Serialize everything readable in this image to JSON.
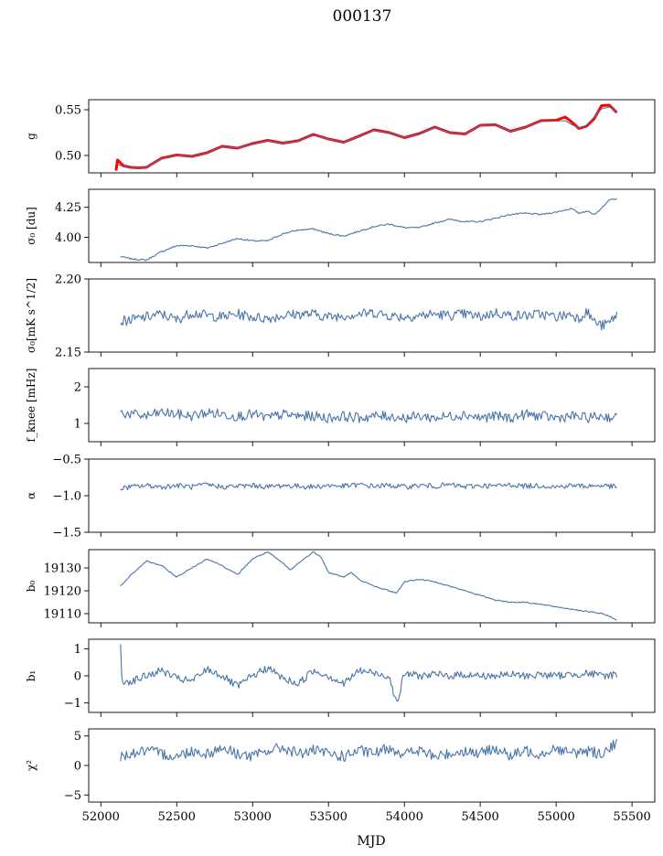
{
  "figure": {
    "title": "000137",
    "xlabel": "MJD"
  },
  "colors": {
    "series": "#4a75a8",
    "fit": "#ff0000",
    "axes": "#000000"
  },
  "chart_data": {
    "type": "line",
    "title": "000137",
    "xlabel": "MJD",
    "xlim": [
      51920,
      55650
    ],
    "xticks": [
      52000,
      52500,
      53000,
      53500,
      54000,
      54500,
      55000,
      55500
    ],
    "grid": false,
    "panels": [
      {
        "key": "g",
        "ylabel": "g",
        "ylim": [
          0.481,
          0.561
        ],
        "yticks": [
          0.5,
          0.55
        ],
        "yticklabels": [
          "0.50",
          "0.55"
        ],
        "series": [
          {
            "style": "fit",
            "x": [
              52100,
              52110,
              52150,
              52200,
              52250,
              52300,
              52400,
              52500,
              52600,
              52700,
              52800,
              52900,
              53000,
              53100,
              53200,
              53300,
              53400,
              53500,
              53600,
              53700,
              53800,
              53900,
              54000,
              54100,
              54200,
              54300,
              54400,
              54500,
              54600,
              54700,
              54800,
              54900,
              55000,
              55060,
              55100,
              55150,
              55200,
              55250,
              55300,
              55350,
              55400
            ],
            "y": [
              0.4835,
              0.495,
              0.4885,
              0.487,
              0.4865,
              0.487,
              0.497,
              0.5005,
              0.499,
              0.503,
              0.51,
              0.508,
              0.513,
              0.5165,
              0.5135,
              0.516,
              0.523,
              0.518,
              0.5145,
              0.521,
              0.528,
              0.525,
              0.5195,
              0.524,
              0.531,
              0.525,
              0.5235,
              0.533,
              0.5335,
              0.5265,
              0.531,
              0.538,
              0.5385,
              0.542,
              0.537,
              0.5295,
              0.532,
              0.54,
              0.5545,
              0.555,
              0.547
            ]
          },
          {
            "style": "model",
            "x": [
              52110,
              52150,
              52200,
              52250,
              52300,
              52400,
              52500,
              52600,
              52700,
              52800,
              52900,
              53000,
              53100,
              53200,
              53300,
              53400,
              53500,
              53600,
              53700,
              53800,
              53900,
              54000,
              54100,
              54200,
              54300,
              54400,
              54500,
              54600,
              54700,
              54800,
              54900,
              55000,
              55060,
              55100,
              55150,
              55200,
              55250,
              55300,
              55350,
              55400
            ],
            "y": [
              0.49,
              0.488,
              0.487,
              0.4865,
              0.487,
              0.4965,
              0.5,
              0.499,
              0.503,
              0.5095,
              0.508,
              0.5125,
              0.516,
              0.5135,
              0.5155,
              0.5225,
              0.518,
              0.5145,
              0.5205,
              0.5275,
              0.525,
              0.5195,
              0.5235,
              0.5305,
              0.525,
              0.5235,
              0.5325,
              0.533,
              0.5265,
              0.5305,
              0.5375,
              0.5375,
              0.538,
              0.534,
              0.53,
              0.533,
              0.542,
              0.551,
              0.553,
              0.548
            ]
          }
        ]
      },
      {
        "key": "sigma0_du",
        "ylabel": "σ₀ [du]",
        "ylim": [
          3.79,
          4.4
        ],
        "yticks": [
          4.0,
          4.25
        ],
        "yticklabels": [
          "4.00",
          "4.25"
        ],
        "series": [
          {
            "style": "line",
            "x": [
              52130,
              52200,
              52300,
              52400,
              52500,
              52600,
              52700,
              52800,
              52900,
              53000,
              53100,
              53200,
              53300,
              53400,
              53500,
              53600,
              53700,
              53800,
              53900,
              54000,
              54100,
              54200,
              54300,
              54400,
              54500,
              54600,
              54700,
              54800,
              54900,
              55000,
              55100,
              55150,
              55200,
              55250,
              55300,
              55350,
              55400
            ],
            "y": [
              3.84,
              3.82,
              3.81,
              3.88,
              3.93,
              3.93,
              3.91,
              3.95,
              3.99,
              3.97,
              3.97,
              4.03,
              4.06,
              4.07,
              4.03,
              4.01,
              4.05,
              4.09,
              4.11,
              4.08,
              4.08,
              4.12,
              4.15,
              4.13,
              4.13,
              4.16,
              4.19,
              4.2,
              4.19,
              4.21,
              4.24,
              4.2,
              4.22,
              4.19,
              4.24,
              4.32,
              4.32
            ]
          }
        ]
      },
      {
        "key": "sigma0_mk",
        "ylabel": "σ₀[mK s^1/2]",
        "ylim": [
          2.15,
          2.2
        ],
        "yticks": [
          2.15,
          2.2
        ],
        "yticklabels": [
          "2.15",
          "2.20"
        ],
        "series": [
          {
            "style": "line",
            "x": [
              52130,
              52200,
              52300,
              52400,
              52500,
              52600,
              52700,
              52800,
              52900,
              53000,
              53100,
              53200,
              53300,
              53400,
              53500,
              53600,
              53700,
              53800,
              53900,
              54000,
              54100,
              54200,
              54300,
              54400,
              54500,
              54600,
              54700,
              54800,
              54900,
              55000,
              55100,
              55150,
              55200,
              55250,
              55300,
              55350,
              55400
            ],
            "y": [
              2.171,
              2.172,
              2.174,
              2.176,
              2.172,
              2.177,
              2.175,
              2.174,
              2.176,
              2.174,
              2.173,
              2.175,
              2.176,
              2.176,
              2.174,
              2.175,
              2.176,
              2.177,
              2.175,
              2.174,
              2.175,
              2.176,
              2.175,
              2.176,
              2.174,
              2.177,
              2.175,
              2.175,
              2.176,
              2.174,
              2.176,
              2.173,
              2.178,
              2.171,
              2.168,
              2.17,
              2.176
            ]
          }
        ]
      },
      {
        "key": "fknee",
        "ylabel": "f_knee [mHz]",
        "ylim": [
          0.5,
          2.5
        ],
        "yticks": [
          1,
          2
        ],
        "yticklabels": [
          "1",
          "2"
        ],
        "series": [
          {
            "style": "line",
            "x": [
              52130,
              52200,
              52300,
              52400,
              52500,
              52600,
              52700,
              52800,
              52900,
              53000,
              53100,
              53200,
              53300,
              53400,
              53500,
              53600,
              53700,
              53800,
              53900,
              54000,
              54100,
              54200,
              54300,
              54400,
              54500,
              54600,
              54700,
              54800,
              54900,
              55000,
              55100,
              55200,
              55300,
              55400
            ],
            "y": [
              1.3,
              1.25,
              1.2,
              1.3,
              1.25,
              1.2,
              1.3,
              1.25,
              1.2,
              1.25,
              1.15,
              1.25,
              1.2,
              1.2,
              1.15,
              1.2,
              1.15,
              1.2,
              1.2,
              1.15,
              1.2,
              1.15,
              1.2,
              1.25,
              1.15,
              1.2,
              1.15,
              1.25,
              1.2,
              1.15,
              1.2,
              1.15,
              1.2,
              1.15
            ]
          }
        ]
      },
      {
        "key": "alpha",
        "ylabel": "α",
        "ylim": [
          -1.5,
          -0.5
        ],
        "yticks": [
          -1.5,
          -1.0,
          -0.5
        ],
        "yticklabels": [
          "−1.5",
          "−1.0",
          "−0.5"
        ],
        "series": [
          {
            "style": "line",
            "x": [
              52130,
              52200,
              52300,
              52400,
              52500,
              52600,
              52700,
              52800,
              52900,
              53000,
              53100,
              53200,
              53300,
              53400,
              53500,
              53600,
              53700,
              53800,
              53900,
              54000,
              54100,
              54200,
              54300,
              54400,
              54500,
              54600,
              54700,
              54800,
              54900,
              55000,
              55100,
              55200,
              55300,
              55400
            ],
            "y": [
              -0.9,
              -0.88,
              -0.86,
              -0.88,
              -0.86,
              -0.88,
              -0.85,
              -0.88,
              -0.87,
              -0.86,
              -0.88,
              -0.86,
              -0.87,
              -0.88,
              -0.86,
              -0.87,
              -0.85,
              -0.87,
              -0.86,
              -0.88,
              -0.86,
              -0.87,
              -0.85,
              -0.88,
              -0.86,
              -0.87,
              -0.85,
              -0.87,
              -0.86,
              -0.88,
              -0.86,
              -0.87,
              -0.86,
              -0.88
            ]
          }
        ]
      },
      {
        "key": "b0",
        "ylabel": "b₀",
        "ylim": [
          19106,
          19138
        ],
        "yticks": [
          19110,
          19120,
          19130
        ],
        "yticklabels": [
          "19110",
          "19120",
          "19130"
        ],
        "series": [
          {
            "style": "line",
            "x": [
              52130,
              52200,
              52300,
              52400,
              52500,
              52600,
              52700,
              52800,
              52900,
              53000,
              53100,
              53200,
              53250,
              53300,
              53400,
              53450,
              53500,
              53600,
              53650,
              53700,
              53800,
              53900,
              53950,
              54000,
              54100,
              54200,
              54300,
              54400,
              54500,
              54600,
              54700,
              54800,
              54900,
              55000,
              55100,
              55200,
              55300,
              55350,
              55400
            ],
            "y": [
              19122,
              19127,
              19133,
              19131,
              19126,
              19130,
              19134,
              19131,
              19127,
              19134,
              19137,
              19132,
              19129,
              19132,
              19137,
              19135,
              19128,
              19126,
              19128,
              19125,
              19122,
              19120,
              19119,
              19124,
              19125,
              19124,
              19122,
              19120,
              19118,
              19116,
              19115,
              19115,
              19114,
              19113,
              19112,
              19111,
              19110,
              19109,
              19107
            ]
          }
        ]
      },
      {
        "key": "b1",
        "ylabel": "b₁",
        "ylim": [
          -1.35,
          1.35
        ],
        "yticks": [
          -1,
          0,
          1
        ],
        "yticklabels": [
          "−1",
          "0",
          "1"
        ],
        "series": [
          {
            "style": "line",
            "x": [
              52130,
              52140,
              52150,
              52200,
              52300,
              52400,
              52500,
              52600,
              52700,
              52800,
              52900,
              53000,
              53100,
              53200,
              53300,
              53400,
              53500,
              53600,
              53700,
              53800,
              53900,
              53950,
              54000,
              54100,
              54200,
              54300,
              54400,
              54500,
              54600,
              54700,
              54800,
              54900,
              55000,
              55100,
              55200,
              55300,
              55400
            ],
            "y": [
              1.15,
              -0.3,
              -0.2,
              -0.2,
              0.0,
              0.2,
              -0.1,
              -0.2,
              0.25,
              0.0,
              -0.4,
              0.0,
              0.3,
              -0.1,
              -0.3,
              0.2,
              0.0,
              -0.3,
              0.2,
              0.1,
              0.0,
              -1.05,
              0.1,
              0.0,
              0.05,
              0.0,
              0.05,
              0.0,
              0.0,
              0.05,
              0.0,
              0.05,
              0.0,
              0.05,
              0.1,
              0.0,
              0.05
            ]
          }
        ]
      },
      {
        "key": "chi2",
        "ylabel": "χ²",
        "ylim": [
          -6.2,
          6.2
        ],
        "yticks": [
          -5,
          0,
          5
        ],
        "yticklabels": [
          "−5",
          "0",
          "5"
        ],
        "series": [
          {
            "style": "line",
            "x": [
              52130,
              52200,
              52300,
              52400,
              52500,
              52600,
              52700,
              52800,
              52900,
              53000,
              53100,
              53200,
              53300,
              53400,
              53500,
              53600,
              53700,
              53800,
              53900,
              54000,
              54100,
              54200,
              54300,
              54400,
              54500,
              54600,
              54700,
              54800,
              54900,
              55000,
              55100,
              55200,
              55300,
              55400
            ],
            "y": [
              1.5,
              2.0,
              2.5,
              2.0,
              1.5,
              2.5,
              2.0,
              3.0,
              2.0,
              1.5,
              2.5,
              3.0,
              2.0,
              2.5,
              2.0,
              1.5,
              2.5,
              2.0,
              3.0,
              2.0,
              2.5,
              1.5,
              2.0,
              2.5,
              2.0,
              3.0,
              1.5,
              2.5,
              2.0,
              3.0,
              2.0,
              2.5,
              2.0,
              4.0
            ]
          }
        ]
      }
    ]
  }
}
